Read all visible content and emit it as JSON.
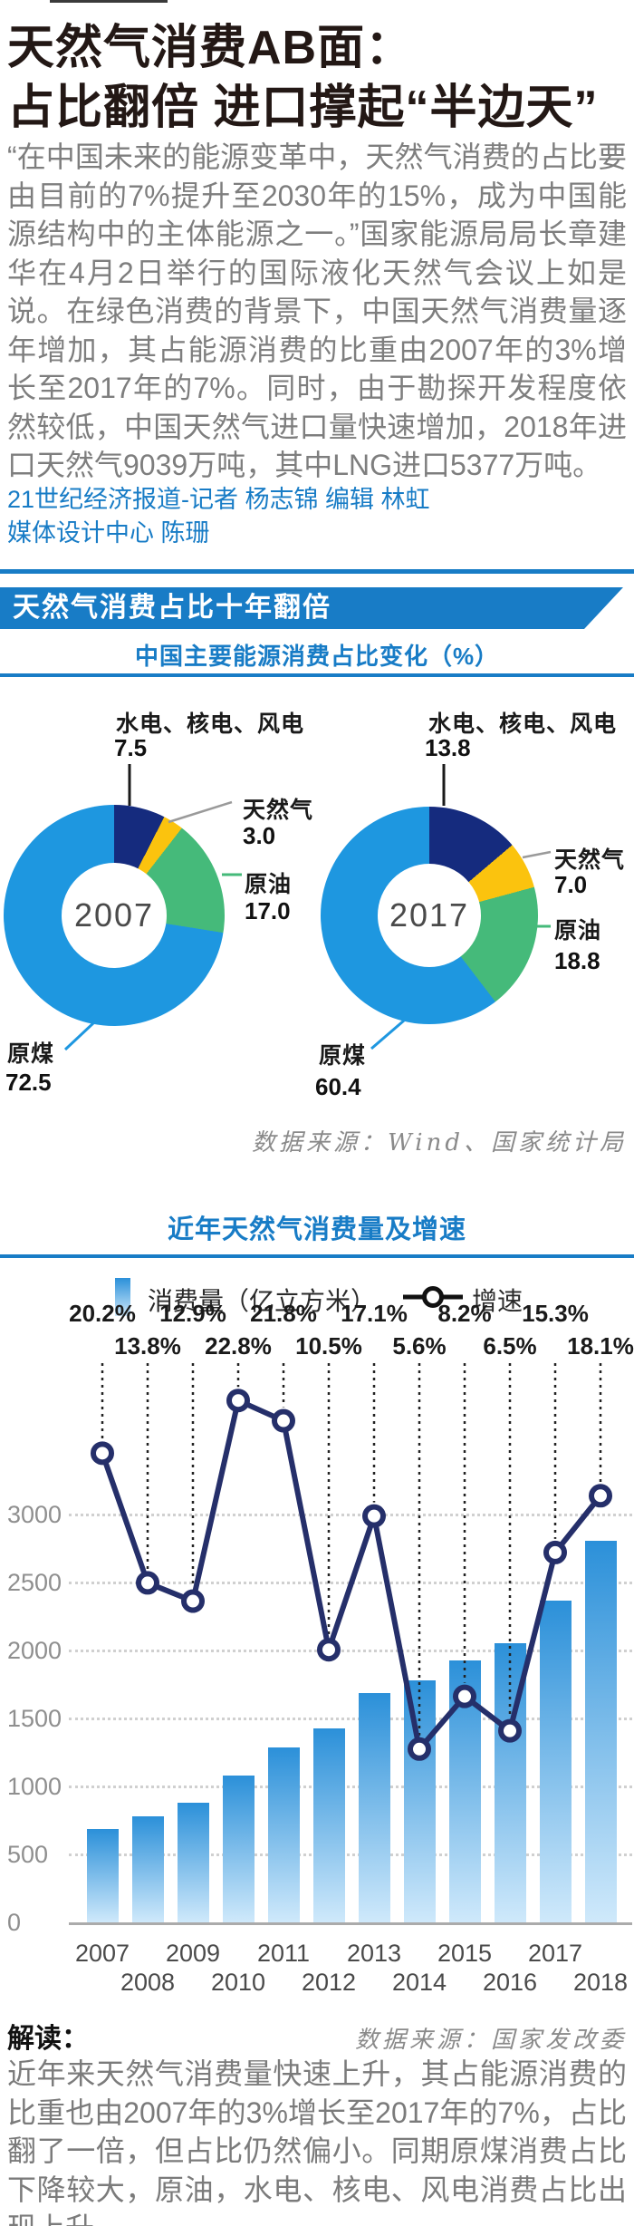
{
  "article": {
    "title_line1": "天然气消费AB面：",
    "title_line2": "占比翻倍 进口撑起“半边天”",
    "paragraph": "“在中国未来的能源变革中，天然气消费的占比要由目前的7%提升至2030年的15%，成为中国能源结构中的主体能源之一。”国家能源局局长章建华在4月2日举行的国际液化天然气会议上如是说。在绿色消费的背景下，中国天然气消费量逐年增加，其占能源消费的比重由2007年的3%增长至2017年的7%。同时，由于勘探开发程度依然较低，中国天然气进口量快速增加，2018年进口天然气9039万吨，其中LNG进口5377万吨。",
    "credit_line1": "21世纪经济报道-记者 杨志锦  编辑 林虹",
    "credit_line2": "媒体设计中心 陈珊"
  },
  "section1": {
    "banner": "天然气消费占比十年翻倍",
    "subtitle": "中国主要能源消费占比变化（%）",
    "source": "数据来源：Wind、国家统计局"
  },
  "section2": {
    "title": "近年天然气消费量及增速",
    "legend_bar": "消费量（亿立方米）",
    "legend_line": "增速",
    "source": "数据来源：国家发改委"
  },
  "interpretation": {
    "label": "解读：",
    "text": "近年来天然气消费量快速上升，其占能源消费的比重也由2007年的3%增长至2017年的7%，占比翻了一倍，但占比仍然偏小。同期原煤消费占比下降较大，原油，水电、核电、风电消费占比出现上升。"
  },
  "colors": {
    "accent_blue": "#187CC6",
    "coal_blue": "#1E97E0",
    "hydro_navy": "#152B7E",
    "gas_yellow": "#FBC30E",
    "oil_green": "#45BA7A",
    "line_navy": "#252F6A",
    "bar_gradient_top": "#2B90D9",
    "bar_gradient_bottom": "#CFE9FB",
    "title_black": "#231815"
  },
  "chart_data": [
    {
      "type": "pie",
      "subtype": "donut",
      "year": "2007",
      "title": "中国主要能源消费占比变化（%）",
      "unit": "%",
      "categories": [
        "水电、核电、风电",
        "天然气",
        "原油",
        "原煤"
      ],
      "values": [
        7.5,
        3.0,
        17.0,
        72.5
      ],
      "legend_position": "callouts"
    },
    {
      "type": "pie",
      "subtype": "donut",
      "year": "2017",
      "title": "中国主要能源消费占比变化（%）",
      "unit": "%",
      "categories": [
        "水电、核电、风电",
        "天然气",
        "原油",
        "原煤"
      ],
      "values": [
        13.8,
        7.0,
        18.8,
        60.4
      ],
      "legend_position": "callouts"
    },
    {
      "type": "bar+line",
      "title": "近年天然气消费量及增速",
      "categories": [
        "2007",
        "2008",
        "2009",
        "2010",
        "2011",
        "2012",
        "2013",
        "2014",
        "2015",
        "2016",
        "2017",
        "2018"
      ],
      "series": [
        {
          "name": "消费量（亿立方米）",
          "type": "bar",
          "values": [
            690,
            780,
            880,
            1080,
            1290,
            1430,
            1690,
            1780,
            1925,
            2055,
            2370,
            2805
          ]
        },
        {
          "name": "增速",
          "type": "line",
          "unit": "%",
          "values": [
            20.2,
            13.8,
            12.9,
            22.8,
            21.8,
            10.5,
            17.1,
            5.6,
            8.2,
            6.5,
            15.3,
            18.1
          ]
        }
      ],
      "ylim": [
        0,
        3200
      ],
      "yticks": [
        0,
        500,
        1000,
        1500,
        2000,
        2500,
        3000
      ],
      "grid": true,
      "legend_position": "top"
    }
  ]
}
